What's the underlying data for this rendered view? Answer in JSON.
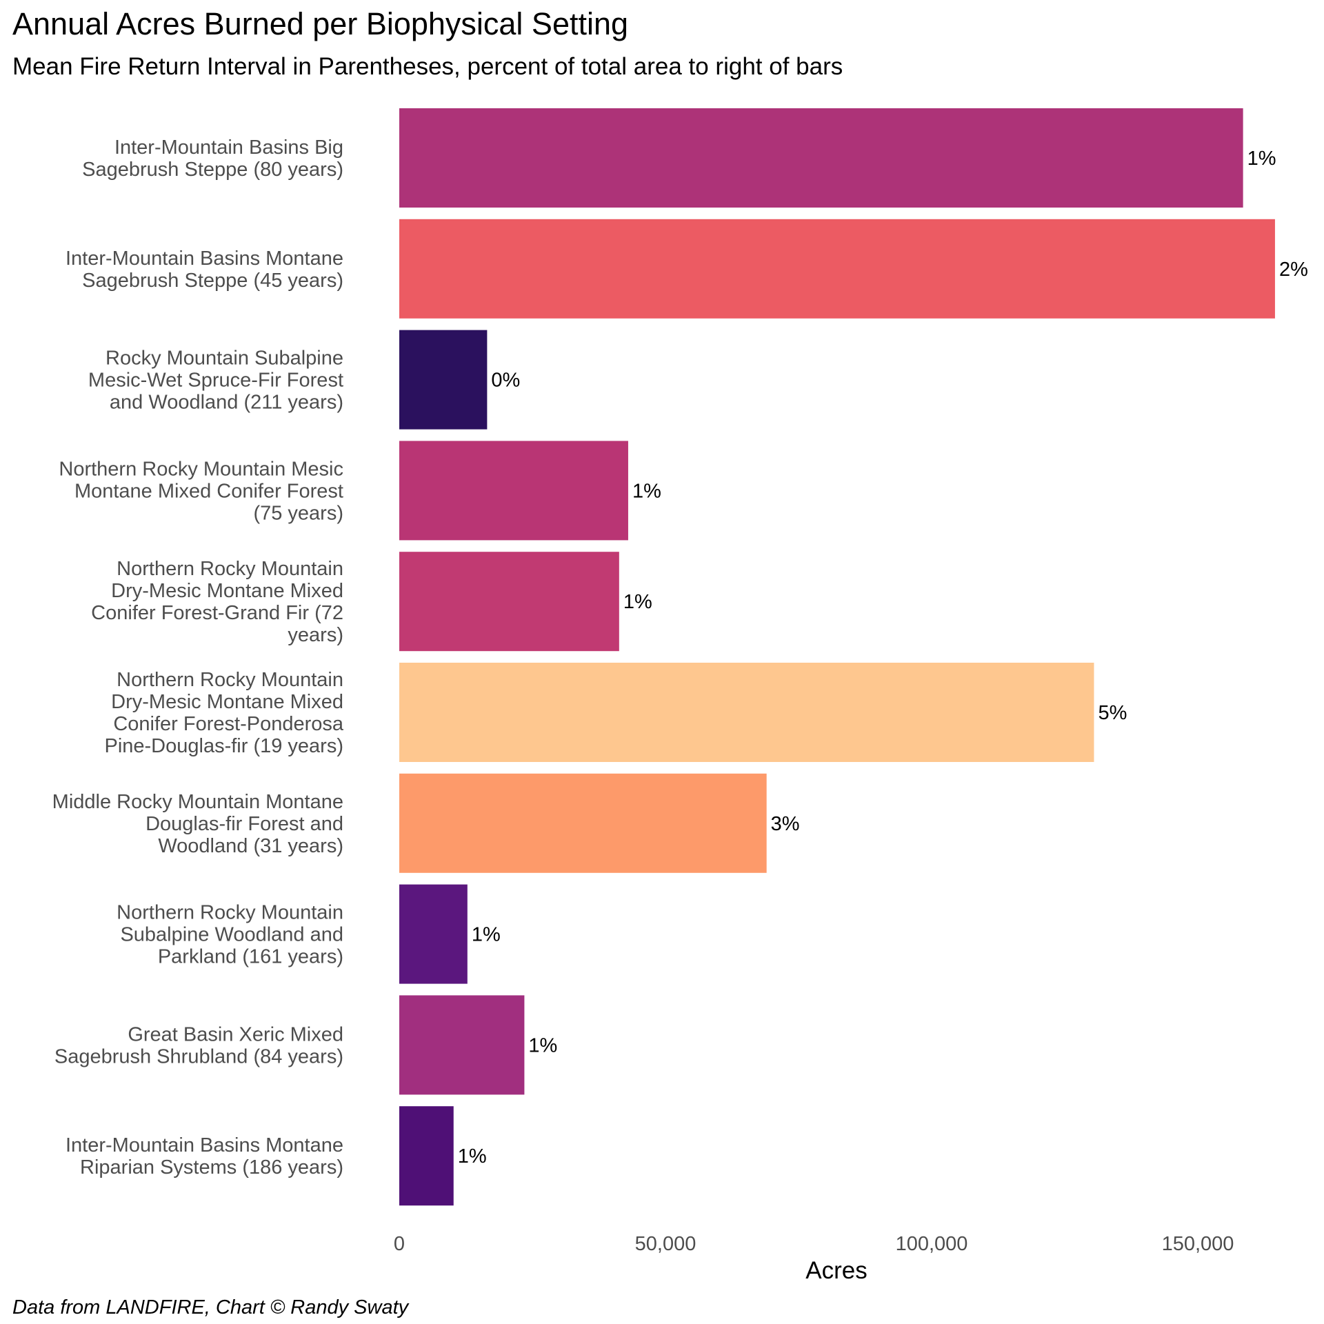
{
  "chart_data": {
    "type": "bar",
    "orientation": "horizontal",
    "title": "Annual Acres Burned per Biophysical Setting",
    "subtitle": "Mean Fire Return Interval in Parentheses, percent of total area to right of bars",
    "xlabel": "Acres",
    "ylabel": "",
    "caption": "Data from LANDFIRE, Chart © Randy Swaty",
    "xlim": [
      0,
      165000
    ],
    "xticks": [
      0,
      50000,
      100000,
      150000
    ],
    "xtick_labels": [
      "0",
      "50,000",
      "100,000",
      "150,000"
    ],
    "grid": false,
    "legend": "none",
    "categories": [
      [
        "Inter-Mountain Basins Big",
        "Sagebrush Steppe (80 years)"
      ],
      [
        "Inter-Mountain Basins Montane",
        "Sagebrush Steppe (45 years)"
      ],
      [
        "Rocky Mountain Subalpine",
        "Mesic-Wet Spruce-Fir Forest",
        "and Woodland (211 years)"
      ],
      [
        "Northern Rocky Mountain Mesic",
        "Montane Mixed Conifer Forest",
        "(75 years)"
      ],
      [
        "Northern Rocky Mountain",
        "Dry-Mesic Montane Mixed",
        "Conifer Forest-Grand Fir (72",
        "years)"
      ],
      [
        "Northern Rocky Mountain",
        "Dry-Mesic Montane Mixed",
        "Conifer Forest-Ponderosa",
        "Pine-Douglas-fir (19 years)"
      ],
      [
        "Middle Rocky Mountain Montane",
        "Douglas-fir Forest and",
        "Woodland (31 years)"
      ],
      [
        "Northern Rocky Mountain",
        "Subalpine Woodland and",
        "Parkland (161 years)"
      ],
      [
        "Great Basin Xeric Mixed",
        "Sagebrush Shrubland (84 years)"
      ],
      [
        "Inter-Mountain Basins Montane",
        "Riparian Systems (186 years)"
      ]
    ],
    "values": [
      158500,
      164500,
      16500,
      43000,
      41300,
      130500,
      69000,
      12800,
      23500,
      10200
    ],
    "percent_labels": [
      "1%",
      "2%",
      "0%",
      "1%",
      "1%",
      "5%",
      "3%",
      "1%",
      "1%",
      "1%"
    ],
    "colors": [
      "#ad3378",
      "#ec5b63",
      "#2b115e",
      "#b93574",
      "#c13a72",
      "#fec78f",
      "#fd9a6a",
      "#5b177e",
      "#a12f7f",
      "#4f1076"
    ]
  }
}
